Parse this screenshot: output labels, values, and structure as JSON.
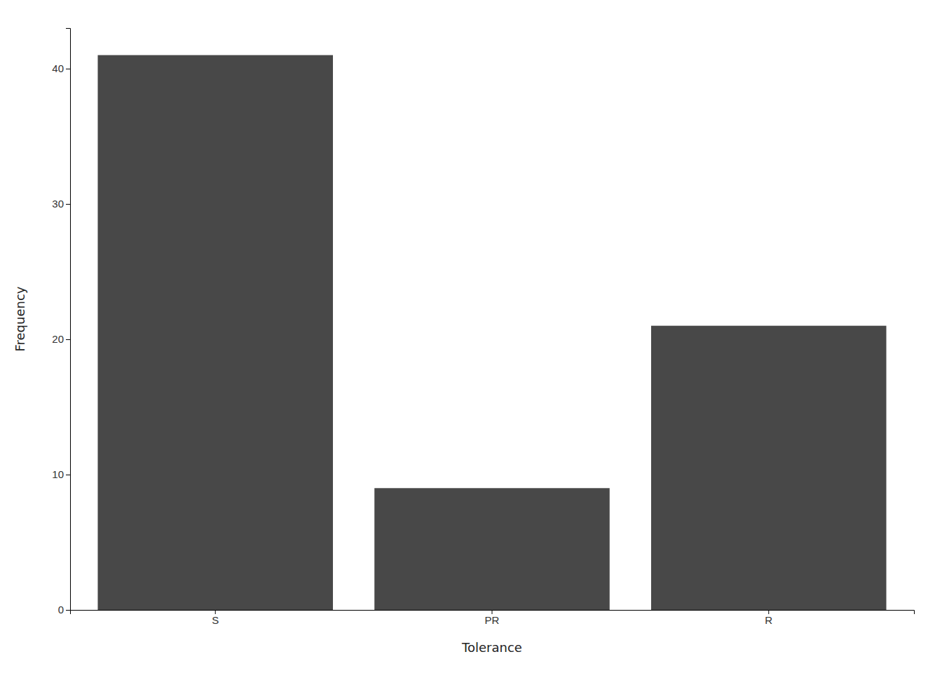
{
  "chart_data": {
    "type": "bar",
    "categories": [
      "S",
      "PR",
      "R"
    ],
    "values": [
      41,
      9,
      21
    ],
    "color": "#484848",
    "xlabel": "Tolerance",
    "ylabel": "Frequency",
    "ylim": [
      0,
      43
    ],
    "yticks": [
      0,
      10,
      20,
      30,
      40
    ],
    "grid": false
  }
}
